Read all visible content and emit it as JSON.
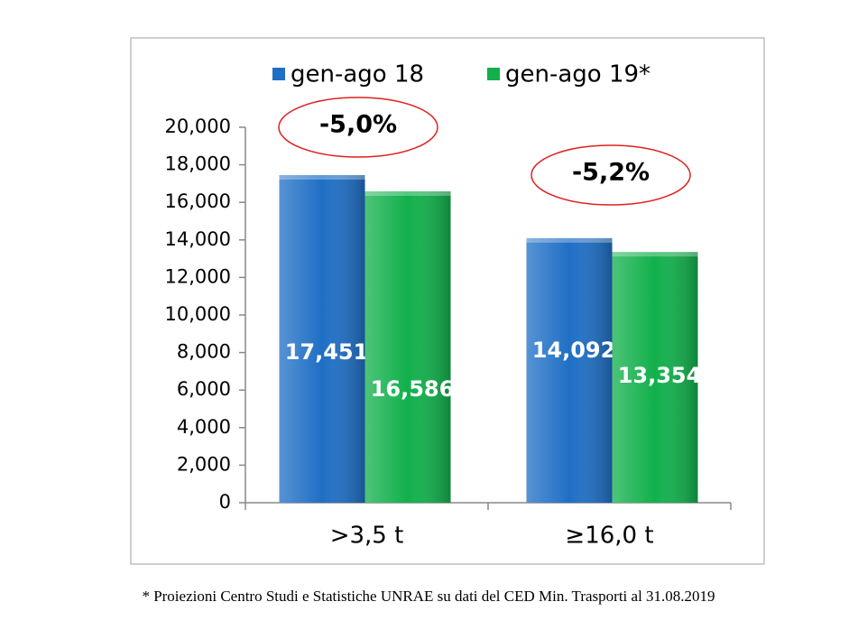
{
  "chart_data": {
    "type": "bar",
    "categories": [
      ">3,5 t",
      "≥16,0 t"
    ],
    "series": [
      {
        "name": "gen-ago 18",
        "color": "#1f6fc5",
        "values": [
          17451,
          14092
        ],
        "value_labels": [
          "17,451",
          "14,092"
        ]
      },
      {
        "name": "gen-ago 19*",
        "color": "#12b04c",
        "values": [
          16586,
          13354
        ],
        "value_labels": [
          "16,586",
          "13,354"
        ]
      }
    ],
    "ylim": [
      0,
      20000
    ],
    "yticks": [
      0,
      {
        "value": 2000,
        "label": "2,000"
      },
      {
        "value": 4000,
        "label": "4,000"
      },
      {
        "value": 6000,
        "label": "6,000"
      },
      {
        "value": 8000,
        "label": "8,000"
      },
      {
        "value": 10000,
        "label": "10,000"
      },
      {
        "value": 12000,
        "label": "12,000"
      },
      {
        "value": 14000,
        "label": "14,000"
      },
      {
        "value": 16000,
        "label": "16,000"
      },
      {
        "value": 18000,
        "label": "18,000"
      },
      {
        "value": 20000,
        "label": "20,000"
      }
    ],
    "annotations": [
      "-5,0%",
      "-5,2%"
    ],
    "legend": "top",
    "footnote": "* Proiezioni Centro Studi e Statistiche UNRAE  su dati del CED Min. Trasporti al 31.08.2019"
  }
}
